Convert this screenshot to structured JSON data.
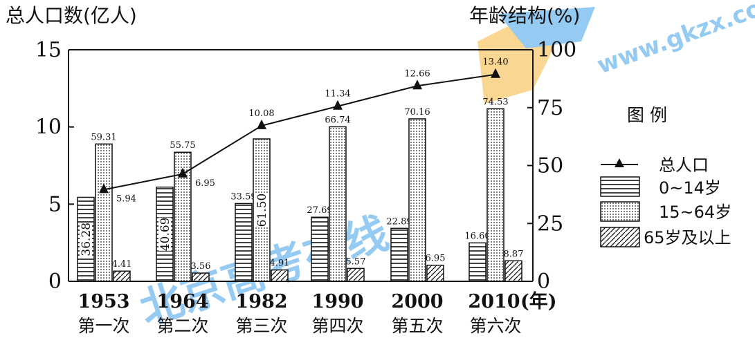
{
  "chart_data": {
    "type": "bar",
    "title": "",
    "y_left_label": "总人口数(亿人)",
    "y_right_label": "年龄结构(%)",
    "y_left_ticks": [
      "0",
      "5",
      "10",
      "15"
    ],
    "y_right_ticks": [
      "0",
      "25",
      "50",
      "75",
      "100"
    ],
    "y_left_range": [
      0,
      15
    ],
    "y_right_range": [
      0,
      100
    ],
    "x_unit": "(年)",
    "categories": [
      "1953",
      "1964",
      "1982",
      "1990",
      "2000",
      "2010"
    ],
    "census_labels": [
      "第一次",
      "第二次",
      "第三次",
      "第四次",
      "第五次",
      "第六次"
    ],
    "series": [
      {
        "name": "总人口",
        "type": "line",
        "axis": "left",
        "values": [
          5.94,
          6.95,
          10.08,
          11.34,
          12.66,
          13.4
        ]
      },
      {
        "name": "0~14岁",
        "type": "bar",
        "axis": "right",
        "pattern": "horizontal-lines",
        "values": [
          36.28,
          40.69,
          33.59,
          27.69,
          22.89,
          16.6
        ]
      },
      {
        "name": "15~64岁",
        "type": "bar",
        "axis": "right",
        "pattern": "dots",
        "values": [
          59.31,
          55.75,
          61.5,
          66.74,
          70.16,
          74.53
        ]
      },
      {
        "name": "65岁及以上",
        "type": "bar",
        "axis": "right",
        "pattern": "diagonal-lines",
        "values": [
          4.41,
          3.56,
          4.91,
          5.57,
          6.95,
          8.87
        ]
      }
    ],
    "value_labels": {
      "total": [
        "5.94",
        "6.95",
        "10.08",
        "11.34",
        "12.66",
        "13.40"
      ],
      "child": [
        "36.28",
        "40.69",
        "33.59",
        "27.69",
        "22.89",
        "16.60"
      ],
      "working": [
        "59.31",
        "55.75",
        "61.50",
        "66.74",
        "70.16",
        "74.53"
      ],
      "elderly": [
        "4.41",
        "3.56",
        "4.91",
        "5.57",
        "6.95",
        "8.87"
      ]
    },
    "legend": {
      "title": "图 例",
      "placement": "right"
    },
    "grid": false
  },
  "watermark": {
    "text": "北京高考在线",
    "url_text": "www.gkzx.com"
  }
}
